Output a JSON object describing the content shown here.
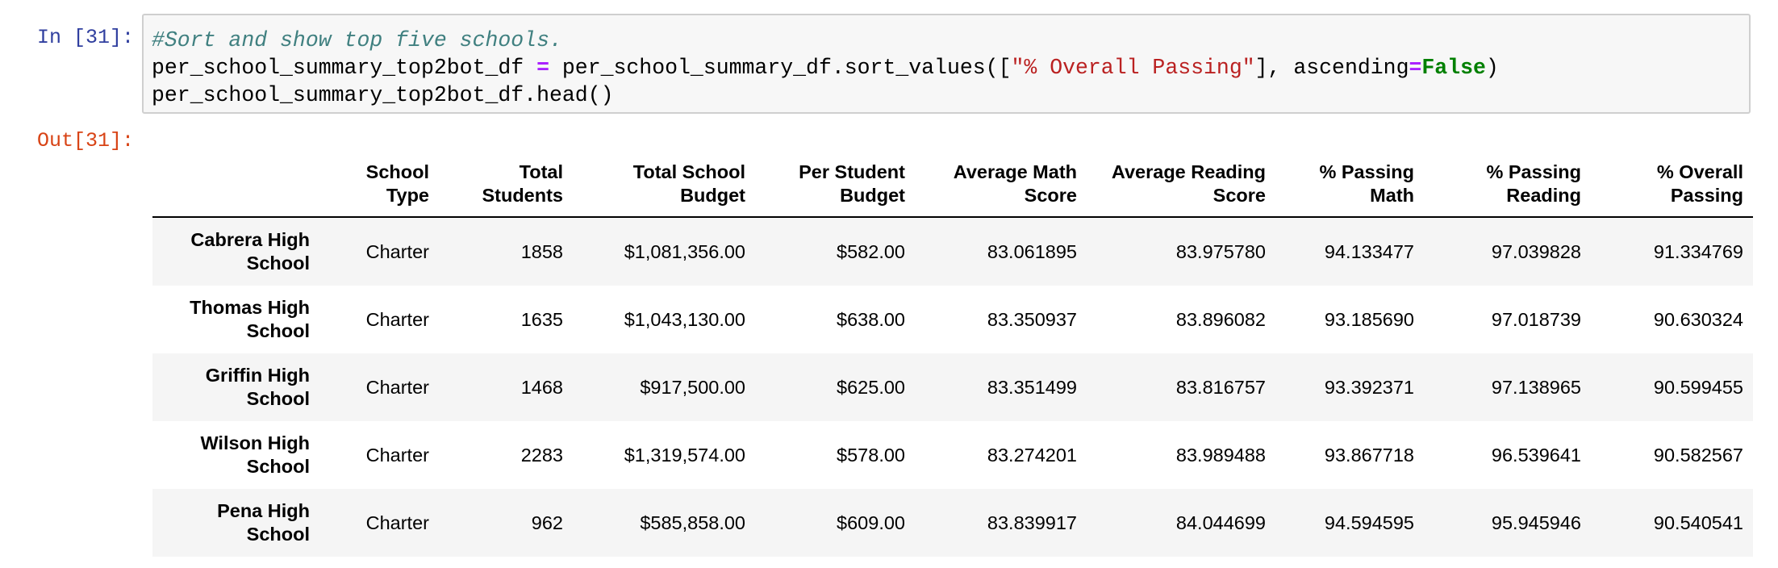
{
  "cell": {
    "in_prompt": "In [31]:",
    "out_prompt": "Out[31]:",
    "code": {
      "comment": "#Sort and show top five schools.",
      "line2_var": "per_school_summary_top2bot_df ",
      "line2_eq": "=",
      "line2_call": " per_school_summary_df.sort_values([",
      "line2_str": "\"% Overall Passing\"",
      "line2_mid": "], ascending",
      "line2_eq2": "=",
      "line2_kw": "False",
      "line2_end": ")",
      "line3": "per_school_summary_top2bot_df.head()"
    }
  },
  "table": {
    "columns": [
      {
        "line1": "School",
        "line2": "Type"
      },
      {
        "line1": "Total",
        "line2": "Students"
      },
      {
        "line1": "Total School",
        "line2": "Budget"
      },
      {
        "line1": "Per Student",
        "line2": "Budget"
      },
      {
        "line1": "Average Math",
        "line2": "Score"
      },
      {
        "line1": "Average Reading",
        "line2": "Score"
      },
      {
        "line1": "% Passing",
        "line2": "Math"
      },
      {
        "line1": "% Passing",
        "line2": "Reading"
      },
      {
        "line1": "% Overall",
        "line2": "Passing"
      }
    ],
    "rows": [
      {
        "index_line1": "Cabrera High",
        "index_line2": "School",
        "cells": [
          "Charter",
          "1858",
          "$1,081,356.00",
          "$582.00",
          "83.061895",
          "83.975780",
          "94.133477",
          "97.039828",
          "91.334769"
        ]
      },
      {
        "index_line1": "Thomas High",
        "index_line2": "School",
        "cells": [
          "Charter",
          "1635",
          "$1,043,130.00",
          "$638.00",
          "83.350937",
          "83.896082",
          "93.185690",
          "97.018739",
          "90.630324"
        ]
      },
      {
        "index_line1": "Griffin High",
        "index_line2": "School",
        "cells": [
          "Charter",
          "1468",
          "$917,500.00",
          "$625.00",
          "83.351499",
          "83.816757",
          "93.392371",
          "97.138965",
          "90.599455"
        ]
      },
      {
        "index_line1": "Wilson High",
        "index_line2": "School",
        "cells": [
          "Charter",
          "2283",
          "$1,319,574.00",
          "$578.00",
          "83.274201",
          "83.989488",
          "93.867718",
          "96.539641",
          "90.582567"
        ]
      },
      {
        "index_line1": "Pena High",
        "index_line2": "School",
        "cells": [
          "Charter",
          "962",
          "$585,858.00",
          "$609.00",
          "83.839917",
          "84.044699",
          "94.594595",
          "95.945946",
          "90.540541"
        ]
      }
    ]
  }
}
